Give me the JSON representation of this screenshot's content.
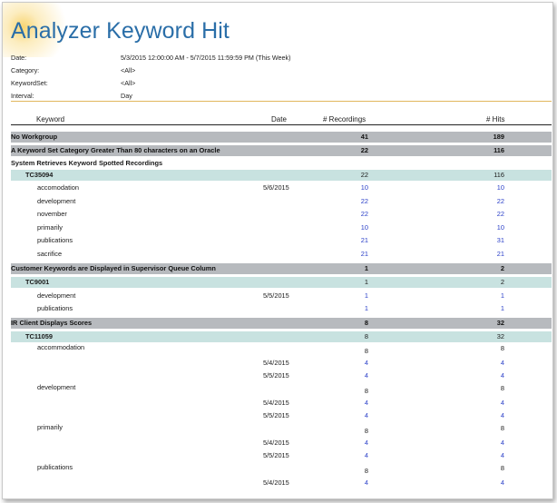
{
  "report": {
    "title": "Analyzer Keyword Hit",
    "meta": [
      {
        "label": "Date:",
        "value": "5/3/2015 12:00:00 AM - 5/7/2015 11:59:59 PM  (This Week)"
      },
      {
        "label": "Category:",
        "value": "<All>"
      },
      {
        "label": "KeywordSet:",
        "value": "<All>"
      },
      {
        "label": "Interval:",
        "value": "Day"
      }
    ],
    "columns": {
      "keyword": "Keyword",
      "date": "Date",
      "recordings": "# Recordings",
      "hits": "# Hits"
    }
  },
  "rows": [
    {
      "type": "group",
      "keyword": "No Workgroup",
      "date": "",
      "recordings": "41",
      "hits": "189"
    },
    {
      "type": "group",
      "keyword": "A Keyword Set Category Greater Than 80 characters on an Oracle",
      "date": "",
      "recordings": "22",
      "hits": "116"
    },
    {
      "type": "group2",
      "keyword": "System Retrieves Keyword Spotted Recordings",
      "date": "",
      "recordings": "",
      "hits": ""
    },
    {
      "type": "sub",
      "keyword": "TC35094",
      "date": "",
      "recordings": "22",
      "hits": "116"
    },
    {
      "type": "kw",
      "keyword": "accomodation",
      "date": "5/6/2015",
      "recordings": "10",
      "hits": "10"
    },
    {
      "type": "kw",
      "keyword": "development",
      "date": "",
      "recordings": "22",
      "hits": "22"
    },
    {
      "type": "kw",
      "keyword": "november",
      "date": "",
      "recordings": "22",
      "hits": "22"
    },
    {
      "type": "kw",
      "keyword": "primarily",
      "date": "",
      "recordings": "10",
      "hits": "10"
    },
    {
      "type": "kw",
      "keyword": "publications",
      "date": "",
      "recordings": "21",
      "hits": "31"
    },
    {
      "type": "kw",
      "keyword": "sacrifice",
      "date": "",
      "recordings": "21",
      "hits": "21"
    },
    {
      "type": "group",
      "keyword": "Customer Keywords are Displayed in Supervisor Queue Column",
      "date": "",
      "recordings": "1",
      "hits": "2"
    },
    {
      "type": "sub",
      "keyword": "TC9001",
      "date": "",
      "recordings": "1",
      "hits": "2"
    },
    {
      "type": "kw",
      "keyword": "development",
      "date": "5/5/2015",
      "recordings": "1",
      "hits": "1"
    },
    {
      "type": "kw",
      "keyword": "publications",
      "date": "",
      "recordings": "1",
      "hits": "1"
    },
    {
      "type": "group",
      "keyword": "IR Client Displays Scores",
      "date": "",
      "recordings": "8",
      "hits": "32"
    },
    {
      "type": "sub",
      "keyword": "TC11059",
      "date": "",
      "recordings": "8",
      "hits": "32"
    },
    {
      "type": "kwt",
      "keyword": "accommodation",
      "date": "",
      "recordings": "8",
      "hits": "8"
    },
    {
      "type": "date",
      "keyword": "",
      "date": "5/4/2015",
      "recordings": "4",
      "hits": "4"
    },
    {
      "type": "date",
      "keyword": "",
      "date": "5/5/2015",
      "recordings": "4",
      "hits": "4"
    },
    {
      "type": "kwt",
      "keyword": "development",
      "date": "",
      "recordings": "8",
      "hits": "8"
    },
    {
      "type": "date",
      "keyword": "",
      "date": "5/4/2015",
      "recordings": "4",
      "hits": "4"
    },
    {
      "type": "date",
      "keyword": "",
      "date": "5/5/2015",
      "recordings": "4",
      "hits": "4"
    },
    {
      "type": "kwt",
      "keyword": "primarily",
      "date": "",
      "recordings": "8",
      "hits": "8"
    },
    {
      "type": "date",
      "keyword": "",
      "date": "5/4/2015",
      "recordings": "4",
      "hits": "4"
    },
    {
      "type": "date",
      "keyword": "",
      "date": "5/5/2015",
      "recordings": "4",
      "hits": "4"
    },
    {
      "type": "kwt",
      "keyword": "publications",
      "date": "",
      "recordings": "8",
      "hits": "8"
    },
    {
      "type": "date",
      "keyword": "",
      "date": "5/4/2015",
      "recordings": "4",
      "hits": "4"
    }
  ]
}
